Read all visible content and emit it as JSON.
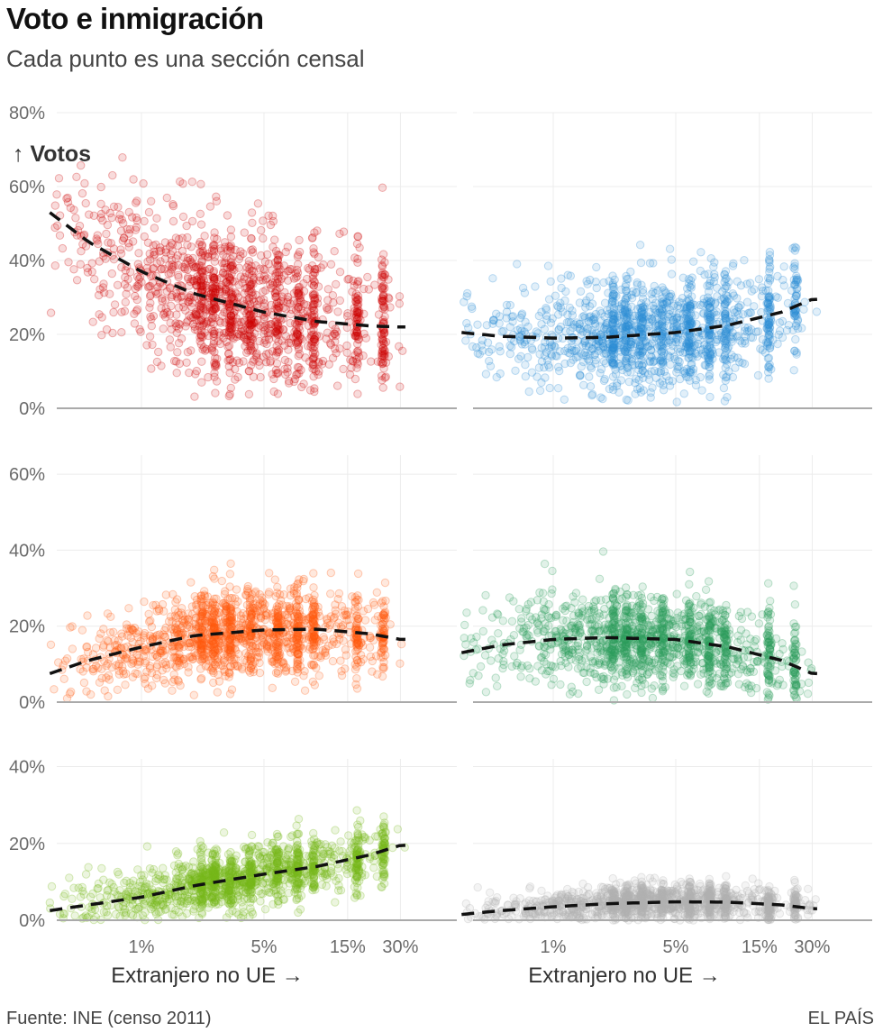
{
  "header": {
    "title": "Voto e inmigración",
    "subtitle": "Cada punto es una sección censal"
  },
  "footer": {
    "source": "Fuente: INE (censo 2011)",
    "brand": "EL PAÍS"
  },
  "chart_data": {
    "type": "scatter",
    "layout": "small-multiples 3x2",
    "ylabel": "↑ Votos",
    "xlabel": "Extranjero no UE →",
    "x_scale": "log",
    "x_ticks": [
      {
        "value": 1,
        "label": "1%"
      },
      {
        "value": 5,
        "label": "5%"
      },
      {
        "value": 15,
        "label": "15%"
      },
      {
        "value": 30,
        "label": "30%"
      }
    ],
    "xlim": [
      0.3,
      32
    ],
    "grid": true,
    "fit_line": "dashed black",
    "panels": [
      {
        "row": 0,
        "col": 0,
        "color": "#cc0000",
        "ylim": [
          0,
          80
        ],
        "y_ticks": [
          {
            "value": 0,
            "label": "0%"
          },
          {
            "value": 20,
            "label": "20%"
          },
          {
            "value": 40,
            "label": "40%"
          },
          {
            "value": 60,
            "label": "60%"
          },
          {
            "value": 80,
            "label": "80%"
          }
        ],
        "trend": [
          [
            0.3,
            53
          ],
          [
            0.5,
            45
          ],
          [
            1,
            37
          ],
          [
            2,
            31
          ],
          [
            5,
            26
          ],
          [
            10,
            23.5
          ],
          [
            20,
            22.3
          ],
          [
            30,
            22
          ]
        ],
        "spread": 10,
        "y_range": [
          3,
          78
        ]
      },
      {
        "row": 0,
        "col": 1,
        "color": "#2e8fd6",
        "ylim": [
          0,
          80
        ],
        "y_ticks": [],
        "trend": [
          [
            0.3,
            20.5
          ],
          [
            0.5,
            19.5
          ],
          [
            1,
            19
          ],
          [
            2,
            19.2
          ],
          [
            5,
            20.5
          ],
          [
            10,
            22.5
          ],
          [
            20,
            26
          ],
          [
            30,
            29.5
          ]
        ],
        "spread": 7.5,
        "y_range": [
          1,
          62
        ]
      },
      {
        "row": 1,
        "col": 0,
        "color": "#ff5a0f",
        "ylim": [
          0,
          65
        ],
        "y_ticks": [
          {
            "value": 0,
            "label": "0%"
          },
          {
            "value": 20,
            "label": "20%"
          },
          {
            "value": 40,
            "label": "40%"
          },
          {
            "value": 60,
            "label": "60%"
          }
        ],
        "trend": [
          [
            0.3,
            7.5
          ],
          [
            0.5,
            11
          ],
          [
            1,
            14.5
          ],
          [
            2,
            17.5
          ],
          [
            5,
            19
          ],
          [
            10,
            19.2
          ],
          [
            20,
            18
          ],
          [
            30,
            16.5
          ]
        ],
        "spread": 5.5,
        "y_range": [
          0,
          37
        ]
      },
      {
        "row": 1,
        "col": 1,
        "color": "#2e9e5e",
        "ylim": [
          0,
          65
        ],
        "y_ticks": [],
        "trend": [
          [
            0.3,
            13
          ],
          [
            0.5,
            15
          ],
          [
            1,
            16.5
          ],
          [
            2,
            17
          ],
          [
            5,
            16.5
          ],
          [
            10,
            14.5
          ],
          [
            20,
            11
          ],
          [
            30,
            7.5
          ]
        ],
        "spread": 6,
        "y_range": [
          0,
          64
        ]
      },
      {
        "row": 2,
        "col": 0,
        "color": "#77bb1c",
        "ylim": [
          0,
          42
        ],
        "y_ticks": [
          {
            "value": 0,
            "label": "0%"
          },
          {
            "value": 20,
            "label": "20%"
          },
          {
            "value": 40,
            "label": "40%"
          }
        ],
        "trend": [
          [
            0.3,
            2.5
          ],
          [
            0.5,
            4
          ],
          [
            1,
            6
          ],
          [
            2,
            9
          ],
          [
            5,
            12
          ],
          [
            10,
            14
          ],
          [
            20,
            17
          ],
          [
            30,
            19.5
          ]
        ],
        "spread": 4,
        "y_range": [
          0,
          40
        ]
      },
      {
        "row": 2,
        "col": 1,
        "color": "#b4b4b4",
        "ylim": [
          0,
          42
        ],
        "y_ticks": [],
        "trend": [
          [
            0.3,
            1.5
          ],
          [
            0.5,
            2.5
          ],
          [
            1,
            3.5
          ],
          [
            2,
            4.3
          ],
          [
            5,
            4.8
          ],
          [
            10,
            4.7
          ],
          [
            20,
            4
          ],
          [
            30,
            3
          ]
        ],
        "spread": 2.5,
        "y_range": [
          0,
          41
        ]
      }
    ]
  }
}
